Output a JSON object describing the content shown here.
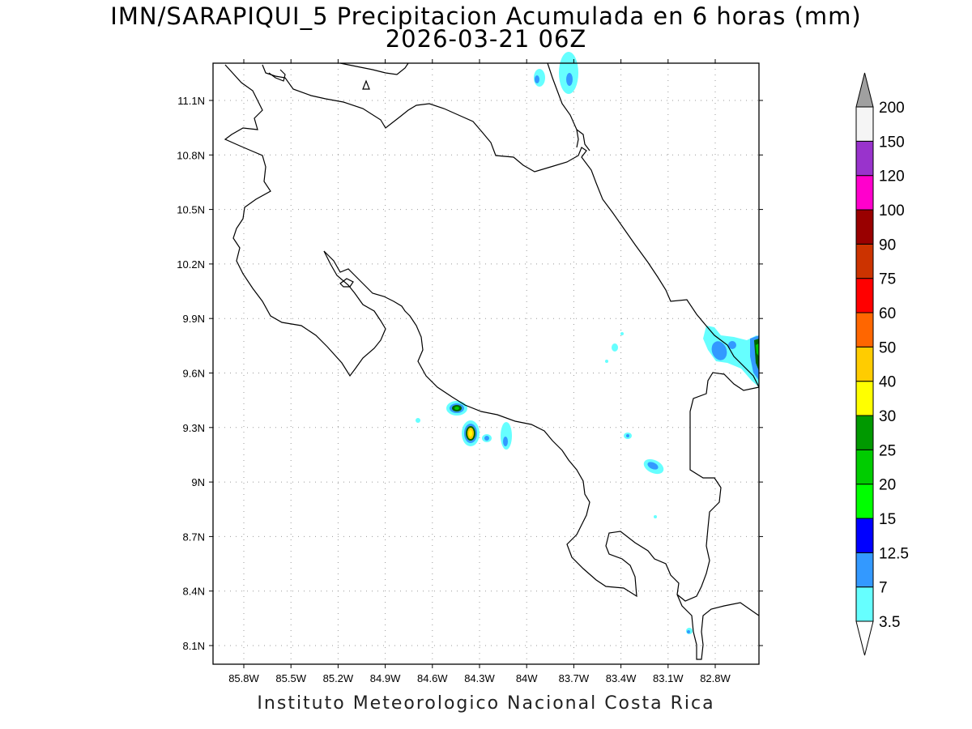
{
  "title": {
    "line1": "IMN/SARAPIQUI_5 Precipitacion Acumulada en 6 horas (mm)",
    "line2": "2026-03-21 06Z"
  },
  "footer": "Instituto Meteorologico Nacional Costa Rica",
  "axes": {
    "lon_range": [
      -85.92,
      -82.9
    ],
    "lat_range": [
      8.0,
      11.3
    ],
    "lon_ticks": [
      "85.8W",
      "85.5W",
      "85.2W",
      "84.9W",
      "84.6W",
      "84.3W",
      "84W",
      "83.7W",
      "83.4W",
      "83.1W",
      "82.8W"
    ],
    "lat_ticks": [
      "11.1N",
      "10.8N",
      "10.5N",
      "10.2N",
      "9.9N",
      "9.6N",
      "9.3N",
      "9N",
      "8.7N",
      "8.4N",
      "8.1N"
    ],
    "grid": true
  },
  "colorbar": {
    "levels": [
      "3.5",
      "7",
      "12.5",
      "15",
      "20",
      "25",
      "30",
      "40",
      "50",
      "60",
      "75",
      "90",
      "100",
      "120",
      "150",
      "200"
    ],
    "colors": [
      "#66ffff",
      "#3399ff",
      "#0000ff",
      "#00ff00",
      "#00cc00",
      "#009900",
      "#ffff00",
      "#ffcc00",
      "#ff6600",
      "#ff0000",
      "#cc3300",
      "#990000",
      "#ff00cc",
      "#9933cc",
      "#f5f5f5",
      "#a0a0a0"
    ],
    "under_color": "#ffffff",
    "over_color": "#a0a0a0"
  }
}
